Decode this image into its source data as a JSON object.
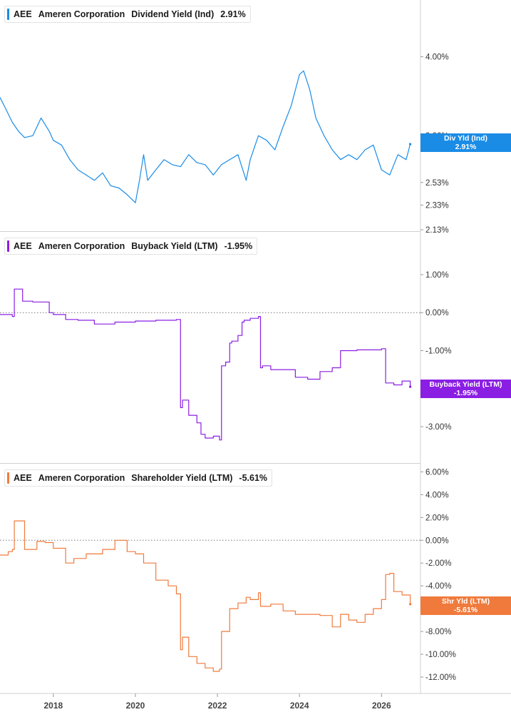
{
  "chart_data": [
    {
      "type": "line",
      "ticker": "AEE",
      "company": "Ameren Corporation",
      "metric": "Dividend Yield (Ind)",
      "current": "2.91%",
      "color": "#1a8ce6",
      "scale": "log",
      "ylim": [
        2.13,
        4.55
      ],
      "y_ticks": [
        "4.00%",
        "3.00%",
        "2.53%",
        "2.33%",
        "2.13%"
      ],
      "y_tick_values": [
        4.0,
        3.0,
        2.53,
        2.33,
        2.13
      ],
      "badge_lines": [
        "Div Yld (Ind)",
        "2.91%"
      ],
      "zero_line": false,
      "series": [
        {
          "x": [
            2016.7,
            2016.85,
            2017.0,
            2017.15,
            2017.3,
            2017.5,
            2017.7,
            2017.9,
            2018.0,
            2018.2,
            2018.4,
            2018.6,
            2018.8,
            2019.0,
            2019.2,
            2019.4,
            2019.6,
            2019.8,
            2020.0,
            2020.1,
            2020.2,
            2020.3,
            2020.5,
            2020.7,
            2020.9,
            2021.1,
            2021.3,
            2021.5,
            2021.7,
            2021.9,
            2022.1,
            2022.3,
            2022.5,
            2022.7,
            2022.8,
            2023.0,
            2023.2,
            2023.4,
            2023.6,
            2023.8,
            2024.0,
            2024.1,
            2024.25,
            2024.4,
            2024.6,
            2024.8,
            2025.0,
            2025.2,
            2025.4,
            2025.6,
            2025.8,
            2026.0,
            2026.2,
            2026.4,
            2026.6,
            2026.7
          ],
          "values": [
            3.45,
            3.3,
            3.15,
            3.05,
            2.98,
            3.0,
            3.2,
            3.05,
            2.95,
            2.9,
            2.75,
            2.65,
            2.6,
            2.55,
            2.62,
            2.5,
            2.48,
            2.42,
            2.35,
            2.55,
            2.8,
            2.55,
            2.65,
            2.75,
            2.7,
            2.68,
            2.8,
            2.72,
            2.7,
            2.6,
            2.7,
            2.75,
            2.8,
            2.55,
            2.75,
            3.0,
            2.95,
            2.85,
            3.1,
            3.35,
            3.75,
            3.8,
            3.55,
            3.2,
            3.0,
            2.85,
            2.75,
            2.8,
            2.75,
            2.85,
            2.9,
            2.65,
            2.6,
            2.8,
            2.75,
            2.91
          ]
        }
      ]
    },
    {
      "type": "line",
      "ticker": "AEE",
      "company": "Ameren Corporation",
      "metric": "Buyback Yield (LTM)",
      "current": "-1.95%",
      "color": "#8a1ee3",
      "scale": "linear",
      "ylim": [
        -3.9,
        1.75
      ],
      "y_ticks": [
        "1.00%",
        "0.00%",
        "-1.00%",
        "-3.00%"
      ],
      "y_tick_values": [
        1.0,
        0.0,
        -1.0,
        -3.0
      ],
      "badge_lines": [
        "Buyback Yield (LTM)",
        "-1.95%"
      ],
      "zero_line": true,
      "series": [
        {
          "x": [
            2016.7,
            2017.0,
            2017.05,
            2017.25,
            2017.5,
            2017.8,
            2017.9,
            2018.0,
            2018.3,
            2018.6,
            2019.0,
            2019.5,
            2020.0,
            2020.5,
            2021.0,
            2021.1,
            2021.15,
            2021.3,
            2021.5,
            2021.6,
            2021.7,
            2021.9,
            2022.05,
            2022.1,
            2022.2,
            2022.3,
            2022.35,
            2022.5,
            2022.6,
            2022.65,
            2022.8,
            2022.9,
            2023.0,
            2023.05,
            2023.1,
            2023.3,
            2023.6,
            2023.9,
            2024.2,
            2024.5,
            2024.8,
            2025.0,
            2025.2,
            2025.4,
            2025.8,
            2026.0,
            2026.1,
            2026.3,
            2026.5,
            2026.7
          ],
          "values": [
            -0.05,
            -0.1,
            0.62,
            0.3,
            0.28,
            0.28,
            0.0,
            -0.05,
            -0.18,
            -0.2,
            -0.3,
            -0.25,
            -0.22,
            -0.2,
            -0.18,
            -2.5,
            -2.3,
            -2.7,
            -2.9,
            -3.2,
            -3.3,
            -3.25,
            -3.35,
            -1.4,
            -1.3,
            -0.8,
            -0.75,
            -0.6,
            -0.25,
            -0.2,
            -0.15,
            -0.15,
            -0.1,
            -1.45,
            -1.4,
            -1.5,
            -1.5,
            -1.7,
            -1.75,
            -1.55,
            -1.45,
            -1.0,
            -1.0,
            -0.98,
            -0.98,
            -0.95,
            -1.85,
            -1.9,
            -1.8,
            -1.95
          ]
        }
      ]
    },
    {
      "type": "line",
      "ticker": "AEE",
      "company": "Ameren Corporation",
      "metric": "Shareholder Yield (LTM)",
      "current": "-5.61%",
      "color": "#f07a3c",
      "scale": "linear",
      "ylim": [
        -13.0,
        6.4
      ],
      "y_ticks": [
        "6.00%",
        "4.00%",
        "2.00%",
        "0.00%",
        "-2.00%",
        "-4.00%",
        "-6.00%",
        "-8.00%",
        "-10.00%",
        "-12.00%"
      ],
      "y_tick_values": [
        6,
        4,
        2,
        0,
        -2,
        -4,
        -6,
        -8,
        -10,
        -12
      ],
      "badge_lines": [
        "Shr Yld (LTM)",
        "-5.61%"
      ],
      "zero_line": true,
      "series": [
        {
          "x": [
            2016.7,
            2016.9,
            2017.0,
            2017.05,
            2017.25,
            2017.3,
            2017.6,
            2017.8,
            2018.0,
            2018.3,
            2018.5,
            2018.8,
            2019.0,
            2019.2,
            2019.4,
            2019.5,
            2019.8,
            2020.0,
            2020.2,
            2020.5,
            2020.8,
            2021.0,
            2021.1,
            2021.15,
            2021.3,
            2021.5,
            2021.7,
            2021.9,
            2022.05,
            2022.1,
            2022.3,
            2022.5,
            2022.7,
            2022.8,
            2023.0,
            2023.05,
            2023.3,
            2023.6,
            2023.9,
            2024.2,
            2024.5,
            2024.8,
            2025.0,
            2025.2,
            2025.4,
            2025.6,
            2025.8,
            2026.0,
            2026.1,
            2026.2,
            2026.3,
            2026.5,
            2026.7
          ],
          "values": [
            -1.3,
            -1.0,
            -0.8,
            1.7,
            1.7,
            -0.8,
            -0.1,
            -0.2,
            -0.7,
            -2.0,
            -1.6,
            -1.2,
            -1.2,
            -0.8,
            -0.8,
            0.0,
            -1.0,
            -1.2,
            -2.0,
            -3.5,
            -4.0,
            -4.7,
            -9.6,
            -8.5,
            -10.2,
            -10.8,
            -11.2,
            -11.5,
            -11.3,
            -8.0,
            -6.0,
            -5.5,
            -5.0,
            -5.2,
            -4.6,
            -5.8,
            -5.6,
            -6.2,
            -6.5,
            -6.5,
            -6.6,
            -7.6,
            -6.5,
            -7.0,
            -7.2,
            -6.5,
            -6.0,
            -5.2,
            -3.0,
            -2.9,
            -4.5,
            -4.8,
            -5.61
          ]
        }
      ]
    }
  ],
  "x_axis": {
    "ticks": [
      "2018",
      "2020",
      "2022",
      "2024",
      "2026"
    ],
    "tick_values": [
      2018,
      2020,
      2022,
      2024,
      2026
    ],
    "xlim": [
      2016.7,
      2026.95
    ]
  }
}
